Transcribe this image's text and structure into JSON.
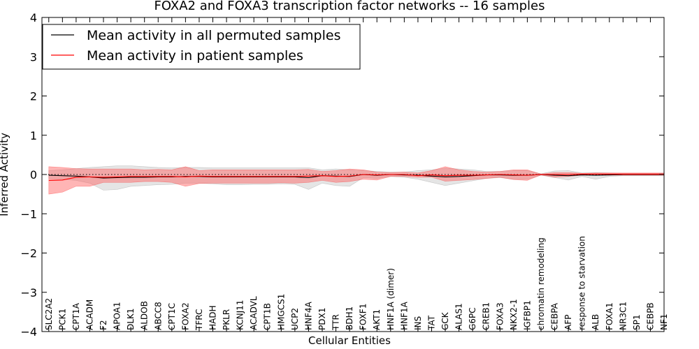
{
  "chart_data": {
    "type": "line",
    "title": "FOXA2 and FOXA3 transcription factor networks -- 16 samples",
    "xlabel": "Cellular Entities",
    "ylabel": "Inferred Activity",
    "ylim": [
      -4,
      4
    ],
    "yticks": [
      "-4",
      "-3",
      "-2",
      "-1",
      "0",
      "1",
      "2",
      "3",
      "4"
    ],
    "legend_position": "top-left",
    "reference_line": {
      "y": 0,
      "style": "dotted"
    },
    "categories": [
      "SLC2A2",
      "PCK1",
      "CPT1A",
      "ACADM",
      "F2",
      "APOA1",
      "DLK1",
      "ALDOB",
      "ABCC8",
      "CPT1C",
      "FOXA2",
      "TFRC",
      "HADH",
      "PKLR",
      "KCNJ11",
      "ACADVL",
      "CPT1B",
      "HMGCS1",
      "UCP2",
      "HNF4A",
      "PDX1",
      "TTR",
      "BDH1",
      "FOXF1",
      "AKT1",
      "HNF1A (dimer)",
      "HNF1A",
      "INS",
      "TAT",
      "GCK",
      "ALAS1",
      "G6PC",
      "CREB1",
      "FOXA3",
      "NKX2-1",
      "IGFBP1",
      "chromatin remodeling",
      "CEBPA",
      "AFP",
      "response to starvation",
      "ALB",
      "FOXA1",
      "NR3C1",
      "SP1",
      "CEBPB",
      "NF1"
    ],
    "series": [
      {
        "name": "Mean activity in all permuted samples",
        "color": "#000000",
        "values": [
          -0.02,
          -0.03,
          -0.04,
          -0.06,
          -0.09,
          -0.08,
          -0.07,
          -0.07,
          -0.06,
          -0.06,
          -0.05,
          -0.05,
          -0.06,
          -0.06,
          -0.06,
          -0.06,
          -0.06,
          -0.06,
          -0.06,
          -0.08,
          -0.03,
          -0.04,
          -0.05,
          0.0,
          -0.02,
          0.0,
          -0.01,
          -0.02,
          -0.04,
          -0.06,
          -0.05,
          -0.03,
          -0.01,
          -0.01,
          -0.02,
          -0.02,
          0.0,
          -0.02,
          -0.03,
          -0.01,
          -0.02,
          -0.01,
          0.0,
          0.0,
          0.0,
          0.0
        ],
        "band_lower": [
          -0.1,
          -0.12,
          -0.15,
          -0.22,
          -0.4,
          -0.38,
          -0.3,
          -0.28,
          -0.26,
          -0.25,
          -0.22,
          -0.22,
          -0.24,
          -0.26,
          -0.26,
          -0.25,
          -0.25,
          -0.24,
          -0.25,
          -0.38,
          -0.22,
          -0.28,
          -0.3,
          -0.08,
          -0.1,
          -0.05,
          -0.07,
          -0.12,
          -0.2,
          -0.28,
          -0.22,
          -0.16,
          -0.1,
          -0.08,
          -0.12,
          -0.12,
          -0.02,
          -0.08,
          -0.14,
          -0.05,
          -0.12,
          -0.05,
          -0.03,
          -0.03,
          -0.03,
          -0.03
        ],
        "band_upper": [
          0.1,
          0.12,
          0.15,
          0.18,
          0.2,
          0.22,
          0.22,
          0.2,
          0.18,
          0.17,
          0.18,
          0.18,
          0.17,
          0.17,
          0.17,
          0.17,
          0.17,
          0.17,
          0.17,
          0.17,
          0.12,
          0.14,
          0.12,
          0.1,
          0.08,
          0.06,
          0.06,
          0.1,
          0.12,
          0.16,
          0.14,
          0.12,
          0.08,
          0.08,
          0.1,
          0.1,
          0.02,
          0.09,
          0.1,
          0.04,
          0.05,
          0.04,
          0.03,
          0.03,
          0.03,
          0.03
        ]
      },
      {
        "name": "Mean activity in patient samples",
        "color": "#ff0000",
        "values": [
          -0.15,
          -0.14,
          -0.07,
          -0.06,
          -0.07,
          -0.06,
          -0.05,
          -0.05,
          -0.05,
          -0.05,
          -0.06,
          -0.04,
          -0.05,
          -0.05,
          -0.05,
          -0.05,
          -0.05,
          -0.05,
          -0.05,
          -0.04,
          -0.03,
          -0.05,
          -0.04,
          0.0,
          -0.01,
          0.0,
          0.0,
          -0.03,
          -0.01,
          -0.03,
          -0.02,
          -0.02,
          -0.01,
          0.0,
          -0.01,
          -0.02,
          0.0,
          0.0,
          0.0,
          0.01,
          0.01,
          0.01,
          0.01,
          0.01,
          0.01,
          0.01
        ],
        "band_lower": [
          -0.5,
          -0.45,
          -0.3,
          -0.3,
          -0.2,
          -0.2,
          -0.2,
          -0.18,
          -0.18,
          -0.2,
          -0.3,
          -0.23,
          -0.22,
          -0.22,
          -0.22,
          -0.22,
          -0.22,
          -0.21,
          -0.22,
          -0.2,
          -0.15,
          -0.2,
          -0.18,
          -0.12,
          -0.14,
          -0.05,
          -0.05,
          -0.07,
          -0.07,
          -0.17,
          -0.15,
          -0.13,
          -0.1,
          -0.07,
          -0.13,
          -0.15,
          -0.01,
          -0.07,
          -0.05,
          -0.02,
          -0.02,
          -0.02,
          -0.02,
          -0.02,
          -0.02,
          -0.02
        ],
        "band_upper": [
          0.2,
          0.18,
          0.15,
          0.14,
          0.14,
          0.14,
          0.14,
          0.12,
          0.13,
          0.12,
          0.2,
          0.1,
          0.12,
          0.12,
          0.12,
          0.12,
          0.12,
          0.12,
          0.12,
          0.13,
          0.08,
          0.1,
          0.14,
          0.12,
          0.06,
          0.05,
          0.06,
          0.04,
          0.1,
          0.2,
          0.12,
          0.08,
          0.06,
          0.08,
          0.12,
          0.12,
          0.01,
          0.05,
          0.05,
          0.03,
          0.04,
          0.04,
          0.04,
          0.04,
          0.04,
          0.04
        ]
      }
    ]
  }
}
